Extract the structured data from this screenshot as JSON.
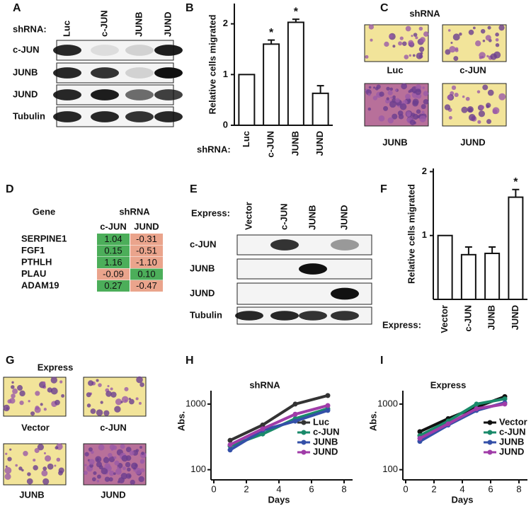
{
  "panels": {
    "A": {
      "label": "A",
      "prefix": "shRNA:",
      "lanes": [
        "Luc",
        "c-JUN",
        "JUNB",
        "JUND"
      ],
      "rows": [
        "c-JUN",
        "JUNB",
        "JUND",
        "Tubulin"
      ]
    },
    "C": {
      "label": "C",
      "title": "shRNA",
      "images": [
        "Luc",
        "c-JUN",
        "JUNB",
        "JUND"
      ]
    },
    "D": {
      "label": "D",
      "gene_header": "Gene",
      "group_header": "shRNA",
      "columns": [
        "c-JUN",
        "JUND"
      ],
      "rows": [
        [
          "SERPINE1",
          "1.04",
          "-0.31"
        ],
        [
          "FGF1",
          "0.15",
          "-0.51"
        ],
        [
          "PTHLH",
          "1.16",
          "-1.10"
        ],
        [
          "PLAU",
          "-0.09",
          "0.10"
        ],
        [
          "ADAM19",
          "0.27",
          "-0.47"
        ]
      ]
    },
    "E": {
      "label": "E",
      "prefix": "Express:",
      "lanes": [
        "Vector",
        "c-JUN",
        "JUNB",
        "JUND"
      ],
      "rows": [
        "c-JUN",
        "JUNB",
        "JUND",
        "Tubulin"
      ]
    },
    "G": {
      "label": "G",
      "title": "Express",
      "images": [
        "Vector",
        "c-JUN",
        "JUNB",
        "JUND"
      ]
    }
  },
  "chart_data": [
    {
      "type": "bar",
      "label": "B",
      "ylabel": "Relative cells migrated",
      "xlabel": "shRNA:",
      "categories": [
        "Luc",
        "c-JUN",
        "JUNB",
        "JUND"
      ],
      "values": [
        1,
        1.6,
        2.03,
        0.63
      ],
      "errors": [
        0,
        0.08,
        0.06,
        0.15
      ],
      "annotations": [
        null,
        "*",
        "*",
        null
      ],
      "color": "#ffffff",
      "ylim": [
        0,
        2.4
      ],
      "yticks": [
        0,
        1,
        2
      ]
    },
    {
      "type": "bar",
      "label": "F",
      "ylabel": "Relative cells migrated",
      "xlabel": "Express:",
      "categories": [
        "Vector",
        "c-JUN",
        "JUNB",
        "JUND"
      ],
      "values": [
        1,
        0.7,
        0.72,
        1.6
      ],
      "errors": [
        0,
        0.12,
        0.1,
        0.12
      ],
      "annotations": [
        null,
        null,
        null,
        "*"
      ],
      "color": "#ffffff",
      "ylim": [
        0,
        2.05
      ],
      "yticks": [
        1,
        2
      ]
    },
    {
      "type": "line",
      "label": "H",
      "title": "shRNA",
      "xlabel": "Days",
      "ylabel": "Abs.",
      "log_y": true,
      "x": [
        1,
        3,
        5,
        7
      ],
      "xlim": [
        0,
        8
      ],
      "xticks": [
        0,
        2,
        4,
        6,
        8
      ],
      "ylim": [
        70,
        1600
      ],
      "yticks": [
        100,
        1000
      ],
      "series": [
        {
          "name": "Luc",
          "color": "#333333",
          "values": [
            280,
            480,
            1000,
            1350
          ]
        },
        {
          "name": "c-JUN",
          "color": "#1a8a6a",
          "values": [
            230,
            350,
            600,
            850
          ]
        },
        {
          "name": "JUNB",
          "color": "#3450a8",
          "values": [
            200,
            400,
            550,
            800
          ]
        },
        {
          "name": "JUND",
          "color": "#a03ca8",
          "values": [
            240,
            420,
            700,
            950
          ]
        }
      ]
    },
    {
      "type": "line",
      "label": "I",
      "title": "Express",
      "xlabel": "Days",
      "ylabel": "Abs.",
      "log_y": true,
      "x": [
        1,
        3,
        5,
        7
      ],
      "xlim": [
        0,
        8
      ],
      "xticks": [
        0,
        2,
        4,
        6,
        8
      ],
      "ylim": [
        70,
        1600
      ],
      "yticks": [
        100,
        1000
      ],
      "series": [
        {
          "name": "Vector",
          "color": "#111111",
          "values": [
            380,
            600,
            900,
            1300
          ]
        },
        {
          "name": "c-JUN",
          "color": "#1a8a6a",
          "values": [
            330,
            550,
            1000,
            1200
          ]
        },
        {
          "name": "JUNB",
          "color": "#3450a8",
          "values": [
            270,
            480,
            800,
            1050
          ]
        },
        {
          "name": "JUND",
          "color": "#a03ca8",
          "values": [
            300,
            500,
            850,
            1000
          ]
        }
      ]
    }
  ]
}
